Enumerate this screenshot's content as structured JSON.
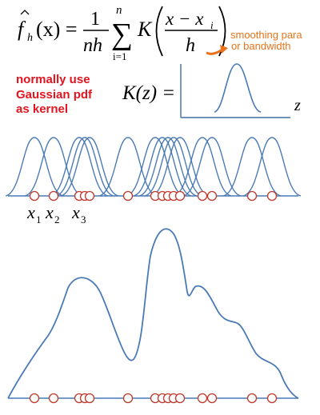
{
  "formula": {
    "lhs_f": "f",
    "lhs_sub": "h",
    "lhs_arg": "(x) =",
    "frac_num": "1",
    "frac_den": "nh",
    "sum_top": "n",
    "sum_bottom": "i=1",
    "kernel_letter": "K",
    "inner_num": "x − x",
    "inner_num_sub": "i",
    "inner_den": "h",
    "annotation_line1": "smoothing para",
    "annotation_line2": "or bandwidth"
  },
  "note": {
    "line1": "normally use",
    "line2": "Gaussian pdf",
    "line3": "as kernel"
  },
  "kernel_plot": {
    "label": "K(z) =",
    "axis_label": "z"
  },
  "top_points": {
    "labels": [
      {
        "text": "x",
        "sub": "1"
      },
      {
        "text": "x",
        "sub": "2"
      },
      {
        "text": "x",
        "sub": "3"
      }
    ]
  },
  "colors": {
    "curve": "#4a7ab5",
    "point_stroke": "#c0392b",
    "annotation": "#e8731a",
    "note_red": "#e3141f"
  }
}
